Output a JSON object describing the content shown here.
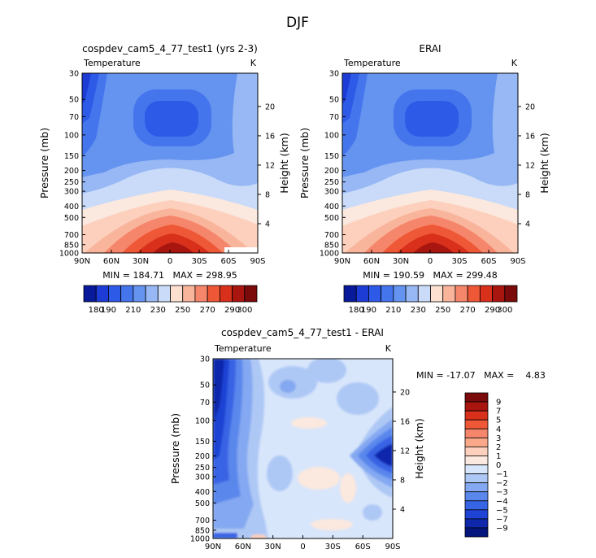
{
  "title": "DJF",
  "chart_data": [
    {
      "type": "heatmap",
      "title": "cospdev_cam5_4_77_test1 (yrs 2-3)",
      "variable": "Temperature",
      "units": "K",
      "xlabel": "",
      "ylabel": "Pressure (mb)",
      "y2label": "Height (km)",
      "x_ticks": [
        "90N",
        "60N",
        "30N",
        "0",
        "30S",
        "60S",
        "90S"
      ],
      "y_ticks": [
        "30",
        "50",
        "70",
        "100",
        "150",
        "200",
        "250",
        "300",
        "400",
        "500",
        "700",
        "850",
        "1000"
      ],
      "y2_ticks": [
        "20",
        "16",
        "12",
        "8",
        "4"
      ],
      "min_max": "MIN = 184.71   MAX = 298.95",
      "levels": [
        "180",
        "190",
        "200",
        "210",
        "220",
        "230",
        "240",
        "250",
        "260",
        "270",
        "280",
        "290",
        "300"
      ],
      "colorbar_labels": [
        "180",
        "190",
        "210",
        "230",
        "250",
        "270",
        "290",
        "300"
      ],
      "colors": [
        "#08199a",
        "#1d3cd6",
        "#2e5ae8",
        "#4475ec",
        "#6593f0",
        "#97b8f4",
        "#c9dbf9",
        "#fde0d0",
        "#f9b59c",
        "#f5866b",
        "#ee5837",
        "#d8301b",
        "#a8160f",
        "#7b0a0a"
      ]
    },
    {
      "type": "heatmap",
      "title": "ERAI",
      "variable": "Temperature",
      "units": "K",
      "xlabel": "",
      "ylabel": "Pressure (mb)",
      "y2label": "Height (km)",
      "x_ticks": [
        "90N",
        "60N",
        "30N",
        "0",
        "30S",
        "60S",
        "90S"
      ],
      "y_ticks": [
        "30",
        "50",
        "70",
        "100",
        "150",
        "200",
        "250",
        "300",
        "400",
        "500",
        "700",
        "850",
        "1000"
      ],
      "y2_ticks": [
        "20",
        "16",
        "12",
        "8",
        "4"
      ],
      "min_max": "MIN = 190.59   MAX = 299.48",
      "levels": [
        "180",
        "190",
        "200",
        "210",
        "220",
        "230",
        "240",
        "250",
        "260",
        "270",
        "280",
        "290",
        "300"
      ],
      "colorbar_labels": [
        "180",
        "190",
        "210",
        "230",
        "250",
        "270",
        "290",
        "300"
      ],
      "colors": [
        "#08199a",
        "#1d3cd6",
        "#2e5ae8",
        "#4475ec",
        "#6593f0",
        "#97b8f4",
        "#c9dbf9",
        "#fde0d0",
        "#f9b59c",
        "#f5866b",
        "#ee5837",
        "#d8301b",
        "#a8160f",
        "#7b0a0a"
      ]
    },
    {
      "type": "heatmap",
      "title": "cospdev_cam5_4_77_test1 - ERAI",
      "variable": "Temperature",
      "units": "K",
      "xlabel": "",
      "ylabel": "Pressure (mb)",
      "y2label": "Height (km)",
      "x_ticks": [
        "90N",
        "60N",
        "30N",
        "0",
        "30S",
        "60S",
        "90S"
      ],
      "y_ticks": [
        "30",
        "50",
        "70",
        "100",
        "150",
        "200",
        "250",
        "300",
        "400",
        "500",
        "700",
        "850",
        "1000"
      ],
      "y2_ticks": [
        "20",
        "16",
        "12",
        "8",
        "4"
      ],
      "min_max": "MIN = -17.07   MAX =    4.83",
      "levels": [
        "9",
        "7",
        "5",
        "4",
        "3",
        "2",
        "1",
        "0",
        "−1",
        "−2",
        "−3",
        "−4",
        "−5",
        "−7",
        "−9"
      ],
      "colors": [
        "#7b0a0a",
        "#a8160f",
        "#d8301b",
        "#ee5837",
        "#f5866b",
        "#f9a98a",
        "#fdd0bd",
        "#fbe8de",
        "#d8e6fb",
        "#aec8f5",
        "#84a8f1",
        "#5a87ec",
        "#3764e4",
        "#1f43d4",
        "#0e27ab",
        "#05157e"
      ]
    }
  ]
}
